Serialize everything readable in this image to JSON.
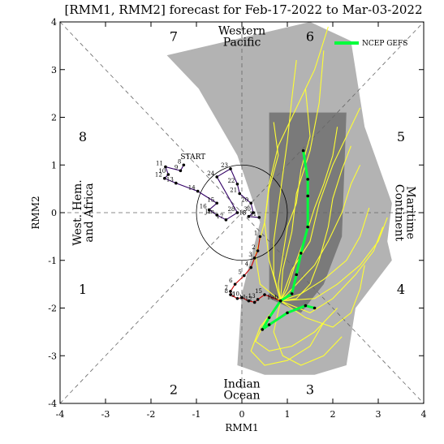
{
  "chart_data": {
    "type": "line",
    "title": "[RMM1, RMM2] forecast for Feb-17-2022 to Mar-03-2022",
    "xlabel": "RMM1",
    "ylabel": "RMM2",
    "xlim": [
      -4,
      4
    ],
    "ylim": [
      -4,
      4
    ],
    "x_ticks": [
      "-4",
      "-3",
      "-2",
      "-1",
      "0",
      "1",
      "2",
      "3",
      "4"
    ],
    "y_ticks": [
      "-4",
      "-3",
      "-2",
      "-1",
      "0",
      "1",
      "2",
      "3",
      "4"
    ],
    "phase_labels": [
      {
        "text": "1",
        "x": -3.5,
        "y": -1.6
      },
      {
        "text": "2",
        "x": -1.5,
        "y": -3.7
      },
      {
        "text": "3",
        "x": 1.5,
        "y": -3.7
      },
      {
        "text": "4",
        "x": 3.5,
        "y": -1.6
      },
      {
        "text": "5",
        "x": 3.5,
        "y": 1.6
      },
      {
        "text": "6",
        "x": 1.5,
        "y": 3.7
      },
      {
        "text": "7",
        "x": -1.5,
        "y": 3.7
      },
      {
        "text": "8",
        "x": -3.5,
        "y": 1.6
      }
    ],
    "region_labels": [
      {
        "lines": [
          "Western",
          "Pacific"
        ],
        "x": 0,
        "y": 3.7
      },
      {
        "lines": [
          "Indian",
          "Ocean"
        ],
        "x": 0,
        "y": -3.7
      },
      {
        "lines": [
          "West. Hem.",
          "and Africa"
        ],
        "x": -3.5,
        "y": 0,
        "rotate": -90
      },
      {
        "lines": [
          "Maritime",
          "Continent"
        ],
        "x": 3.6,
        "y": 0,
        "rotate": 90
      }
    ],
    "legend": {
      "label": "NCEP GEFS",
      "color": "#00ff3c",
      "position": "top-right"
    },
    "plume_outer": [
      [
        -1.65,
        3.3
      ],
      [
        1.5,
        4.0
      ],
      [
        2.4,
        3.6
      ],
      [
        2.7,
        1.8
      ],
      [
        3.3,
        0.2
      ],
      [
        3.2,
        -0.6
      ],
      [
        3.3,
        -1.0
      ],
      [
        2.5,
        -2.0
      ],
      [
        2.3,
        -3.2
      ],
      [
        1.6,
        -3.4
      ],
      [
        0.5,
        -3.4
      ],
      [
        -0.1,
        -3.2
      ],
      [
        0,
        -1.7
      ],
      [
        0.4,
        -0.2
      ],
      [
        -0.1,
        1.2
      ],
      [
        -0.95,
        2.6
      ]
    ],
    "plume_inner": [
      [
        0.6,
        2.1
      ],
      [
        2.3,
        2.1
      ],
      [
        2.2,
        -0.5
      ],
      [
        1.8,
        -1.5
      ],
      [
        1.3,
        -2.1
      ],
      [
        0.6,
        -1.8
      ],
      [
        0.6,
        0.5
      ]
    ],
    "observed_segments": [
      {
        "name": "start-segment",
        "color": "#330066",
        "points": [
          {
            "x": -1.28,
            "y": 1.0,
            "label": "8"
          },
          {
            "x": -1.35,
            "y": 0.88,
            "label": "9"
          },
          {
            "x": -1.68,
            "y": 0.96,
            "label": "11"
          },
          {
            "x": -1.62,
            "y": 0.8,
            "label": "10"
          },
          {
            "x": -1.7,
            "y": 0.72,
            "label": "12"
          },
          {
            "x": -1.45,
            "y": 0.62,
            "label": "13"
          },
          {
            "x": -0.97,
            "y": 0.45,
            "label": "14"
          },
          {
            "x": -0.55,
            "y": 0.2,
            "label": "15"
          },
          {
            "x": -0.72,
            "y": 0.06,
            "label": "16"
          },
          {
            "x": -0.55,
            "y": -0.05,
            "label": "Jan"
          },
          {
            "x": -0.35,
            "y": -0.15,
            "label": "17"
          },
          {
            "x": -0.1,
            "y": 0.0,
            "label": "28"
          },
          {
            "x": -0.55,
            "y": 0.75,
            "label": "24"
          },
          {
            "x": -0.25,
            "y": 0.92,
            "label": "23"
          },
          {
            "x": -0.1,
            "y": 0.6,
            "label": "22"
          },
          {
            "x": -0.05,
            "y": 0.4,
            "label": "21"
          },
          {
            "x": 0.2,
            "y": 0.2,
            "label": "20"
          },
          {
            "x": 0.25,
            "y": 0.0,
            "label": "30"
          },
          {
            "x": 0.15,
            "y": -0.08,
            "label": "18"
          },
          {
            "x": 0.38,
            "y": -0.1,
            "label": "31"
          }
        ]
      },
      {
        "name": "feb-segment",
        "color": "#cc0000",
        "points": [
          {
            "x": 0.4,
            "y": -0.5,
            "label": "1"
          },
          {
            "x": 0.35,
            "y": -0.8,
            "label": "2"
          },
          {
            "x": 0.28,
            "y": -0.95,
            "label": "3"
          },
          {
            "x": 0.2,
            "y": -1.15,
            "label": "4"
          },
          {
            "x": 0.05,
            "y": -1.32,
            "label": "5"
          },
          {
            "x": -0.15,
            "y": -1.5,
            "label": "6"
          },
          {
            "x": -0.25,
            "y": -1.65,
            "label": "7"
          },
          {
            "x": -0.25,
            "y": -1.72,
            "label": "8"
          },
          {
            "x": -0.1,
            "y": -1.8,
            "label": "9"
          },
          {
            "x": 0.0,
            "y": -1.78,
            "label": "10"
          },
          {
            "x": 0.15,
            "y": -1.85,
            "label": "11"
          },
          {
            "x": 0.28,
            "y": -1.88,
            "label": "12"
          },
          {
            "x": 0.35,
            "y": -1.82,
            "label": "13"
          },
          {
            "x": 0.5,
            "y": -1.72,
            "label": "15"
          },
          {
            "x": 0.85,
            "y": -1.85,
            "label": "Feb"
          }
        ]
      }
    ],
    "start_label": {
      "text": "START",
      "x": -1.35,
      "y": 1.12,
      "color": "#660099"
    },
    "forecast_mean": [
      [
        0.85,
        -1.85
      ],
      [
        1.1,
        -1.7
      ],
      [
        1.2,
        -1.3
      ],
      [
        1.3,
        -0.85
      ],
      [
        1.45,
        -0.3
      ],
      [
        1.45,
        0.35
      ],
      [
        1.45,
        0.7
      ],
      [
        1.35,
        1.3
      ]
    ],
    "forecast_lower": [
      [
        0.85,
        -1.85
      ],
      [
        0.6,
        -2.2
      ],
      [
        0.45,
        -2.45
      ],
      [
        0.6,
        -2.35
      ],
      [
        1.0,
        -2.1
      ],
      [
        1.4,
        -1.95
      ],
      [
        1.6,
        -2.0
      ]
    ],
    "ensemble_members": [
      [
        [
          0.85,
          -1.85
        ],
        [
          1.0,
          -1.6
        ],
        [
          1.2,
          -1.0
        ],
        [
          1.4,
          -0.5
        ],
        [
          1.6,
          0.1
        ],
        [
          1.8,
          0.6
        ],
        [
          2.0,
          1.2
        ],
        [
          2.1,
          1.8
        ]
      ],
      [
        [
          0.85,
          -1.85
        ],
        [
          1.2,
          -1.5
        ],
        [
          1.6,
          -1.1
        ],
        [
          1.9,
          -0.6
        ],
        [
          2.2,
          0.0
        ],
        [
          2.4,
          0.6
        ],
        [
          2.6,
          1.0
        ]
      ],
      [
        [
          0.85,
          -1.85
        ],
        [
          0.7,
          -1.3
        ],
        [
          0.7,
          -0.6
        ],
        [
          0.8,
          0.1
        ],
        [
          0.9,
          0.8
        ],
        [
          1.0,
          1.5
        ],
        [
          1.1,
          2.4
        ],
        [
          1.2,
          3.2
        ]
      ],
      [
        [
          0.85,
          -1.85
        ],
        [
          1.3,
          -1.7
        ],
        [
          1.8,
          -1.4
        ],
        [
          2.3,
          -1.0
        ],
        [
          2.6,
          -0.5
        ],
        [
          2.8,
          0.1
        ]
      ],
      [
        [
          0.85,
          -1.85
        ],
        [
          0.9,
          -1.2
        ],
        [
          1.1,
          -0.4
        ],
        [
          1.2,
          0.4
        ],
        [
          1.5,
          1.3
        ],
        [
          1.7,
          2.3
        ],
        [
          1.8,
          3.4
        ]
      ],
      [
        [
          0.85,
          -1.85
        ],
        [
          1.5,
          -2.1
        ],
        [
          2.0,
          -1.8
        ],
        [
          2.5,
          -1.3
        ],
        [
          2.9,
          -0.8
        ],
        [
          3.1,
          -0.3
        ]
      ],
      [
        [
          0.85,
          -1.85
        ],
        [
          0.6,
          -1.0
        ],
        [
          0.5,
          -0.2
        ],
        [
          0.6,
          0.6
        ],
        [
          0.8,
          1.4
        ],
        [
          1.1,
          2.0
        ],
        [
          1.6,
          3.0
        ],
        [
          1.9,
          3.9
        ]
      ],
      [
        [
          0.85,
          -1.85
        ],
        [
          1.1,
          -1.2
        ],
        [
          1.5,
          -0.6
        ],
        [
          1.7,
          0.2
        ],
        [
          2.0,
          1.0
        ],
        [
          2.3,
          1.6
        ],
        [
          2.6,
          2.2
        ]
      ],
      [
        [
          0.85,
          -1.85
        ],
        [
          0.5,
          -2.3
        ],
        [
          0.3,
          -2.7
        ],
        [
          0.6,
          -2.9
        ],
        [
          1.1,
          -2.8
        ],
        [
          1.6,
          -2.5
        ],
        [
          2.1,
          -2.0
        ]
      ],
      [
        [
          0.85,
          -1.85
        ],
        [
          0.4,
          -2.4
        ],
        [
          0.2,
          -2.9
        ],
        [
          0.5,
          -3.2
        ],
        [
          1.0,
          -3.1
        ],
        [
          1.5,
          -2.8
        ],
        [
          1.8,
          -2.3
        ]
      ],
      [
        [
          0.85,
          -1.85
        ],
        [
          1.4,
          -2.2
        ],
        [
          2.0,
          -2.4
        ],
        [
          2.4,
          -2.1
        ],
        [
          2.6,
          -1.6
        ],
        [
          2.7,
          -1.1
        ]
      ],
      [
        [
          0.85,
          -1.85
        ],
        [
          0.8,
          -1.5
        ],
        [
          0.9,
          -0.9
        ],
        [
          1.0,
          -0.3
        ],
        [
          1.2,
          0.2
        ],
        [
          1.3,
          0.9
        ],
        [
          1.5,
          1.6
        ],
        [
          1.4,
          2.6
        ]
      ],
      [
        [
          0.85,
          -1.85
        ],
        [
          1.2,
          -1.8
        ],
        [
          1.5,
          -1.5
        ],
        [
          1.7,
          -1.0
        ],
        [
          1.9,
          -0.3
        ],
        [
          2.0,
          0.3
        ],
        [
          2.2,
          0.9
        ],
        [
          2.4,
          1.4
        ]
      ],
      [
        [
          0.85,
          -1.85
        ],
        [
          0.4,
          -1.5
        ],
        [
          0.3,
          -0.9
        ],
        [
          0.5,
          -0.2
        ],
        [
          0.6,
          0.5
        ],
        [
          0.8,
          1.2
        ],
        [
          0.7,
          1.9
        ]
      ],
      [
        [
          0.85,
          -1.85
        ],
        [
          1.6,
          -1.8
        ],
        [
          2.1,
          -1.5
        ],
        [
          2.6,
          -1.1
        ],
        [
          3.0,
          -0.6
        ],
        [
          3.2,
          -0.1
        ]
      ],
      [
        [
          0.85,
          -1.85
        ],
        [
          0.7,
          -2.5
        ],
        [
          0.9,
          -3.0
        ],
        [
          1.3,
          -3.2
        ],
        [
          1.8,
          -3.0
        ],
        [
          2.2,
          -2.6
        ]
      ]
    ],
    "inner_circle_radius": 1.0
  }
}
